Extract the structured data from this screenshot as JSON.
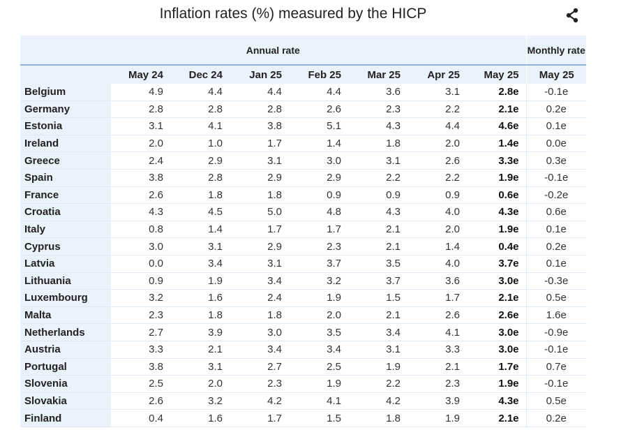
{
  "header": {
    "title": "Inflation rates (%) measured by the HICP",
    "share_icon": "share-icon"
  },
  "table": {
    "group_headers": {
      "annual": "Annual rate",
      "monthly": "Monthly rate"
    },
    "columns": [
      "May 24",
      "Dec 24",
      "Jan 25",
      "Feb 25",
      "Mar 25",
      "Apr 25",
      "May 25"
    ],
    "monthly_column": "May 25",
    "rows": [
      {
        "country": "Belgium",
        "values": [
          "4.9",
          "4.4",
          "4.4",
          "4.4",
          "3.6",
          "3.1",
          "2.8e"
        ],
        "monthly": "-0.1e"
      },
      {
        "country": "Germany",
        "values": [
          "2.8",
          "2.8",
          "2.8",
          "2.6",
          "2.3",
          "2.2",
          "2.1e"
        ],
        "monthly": "0.2e"
      },
      {
        "country": "Estonia",
        "values": [
          "3.1",
          "4.1",
          "3.8",
          "5.1",
          "4.3",
          "4.4",
          "4.6e"
        ],
        "monthly": "0.1e"
      },
      {
        "country": "Ireland",
        "values": [
          "2.0",
          "1.0",
          "1.7",
          "1.4",
          "1.8",
          "2.0",
          "1.4e"
        ],
        "monthly": "0.0e"
      },
      {
        "country": "Greece",
        "values": [
          "2.4",
          "2.9",
          "3.1",
          "3.0",
          "3.1",
          "2.6",
          "3.3e"
        ],
        "monthly": "0.3e"
      },
      {
        "country": "Spain",
        "values": [
          "3.8",
          "2.8",
          "2.9",
          "2.9",
          "2.2",
          "2.2",
          "1.9e"
        ],
        "monthly": "-0.1e"
      },
      {
        "country": "France",
        "values": [
          "2.6",
          "1.8",
          "1.8",
          "0.9",
          "0.9",
          "0.9",
          "0.6e"
        ],
        "monthly": "-0.2e"
      },
      {
        "country": "Croatia",
        "values": [
          "4.3",
          "4.5",
          "5.0",
          "4.8",
          "4.3",
          "4.0",
          "4.3e"
        ],
        "monthly": "0.6e"
      },
      {
        "country": "Italy",
        "values": [
          "0.8",
          "1.4",
          "1.7",
          "1.7",
          "2.1",
          "2.0",
          "1.9e"
        ],
        "monthly": "0.1e"
      },
      {
        "country": "Cyprus",
        "values": [
          "3.0",
          "3.1",
          "2.9",
          "2.3",
          "2.1",
          "1.4",
          "0.4e"
        ],
        "monthly": "0.2e"
      },
      {
        "country": "Latvia",
        "values": [
          "0.0",
          "3.4",
          "3.1",
          "3.7",
          "3.5",
          "4.0",
          "3.7e"
        ],
        "monthly": "0.1e"
      },
      {
        "country": "Lithuania",
        "values": [
          "0.9",
          "1.9",
          "3.4",
          "3.2",
          "3.7",
          "3.6",
          "3.0e"
        ],
        "monthly": "-0.3e"
      },
      {
        "country": "Luxembourg",
        "values": [
          "3.2",
          "1.6",
          "2.4",
          "1.9",
          "1.5",
          "1.7",
          "2.1e"
        ],
        "monthly": "0.5e"
      },
      {
        "country": "Malta",
        "values": [
          "2.3",
          "1.8",
          "1.8",
          "2.0",
          "2.1",
          "2.6",
          "2.6e"
        ],
        "monthly": "1.6e"
      },
      {
        "country": "Netherlands",
        "values": [
          "2.7",
          "3.9",
          "3.0",
          "3.5",
          "3.4",
          "4.1",
          "3.0e"
        ],
        "monthly": "-0.9e"
      },
      {
        "country": "Austria",
        "values": [
          "3.3",
          "2.1",
          "3.4",
          "3.4",
          "3.1",
          "3.3",
          "3.0e"
        ],
        "monthly": "-0.1e"
      },
      {
        "country": "Portugal",
        "values": [
          "3.8",
          "3.1",
          "2.7",
          "2.5",
          "1.9",
          "2.1",
          "1.7e"
        ],
        "monthly": "0.7e"
      },
      {
        "country": "Slovenia",
        "values": [
          "2.5",
          "2.0",
          "2.3",
          "1.9",
          "2.2",
          "2.3",
          "1.9e"
        ],
        "monthly": "-0.1e"
      },
      {
        "country": "Slovakia",
        "values": [
          "2.6",
          "3.2",
          "4.2",
          "4.1",
          "4.2",
          "3.9",
          "4.3e"
        ],
        "monthly": "0.5e"
      },
      {
        "country": "Finland",
        "values": [
          "0.4",
          "1.6",
          "1.7",
          "1.5",
          "1.8",
          "1.9",
          "2.1e"
        ],
        "monthly": "0.2e"
      }
    ]
  }
}
